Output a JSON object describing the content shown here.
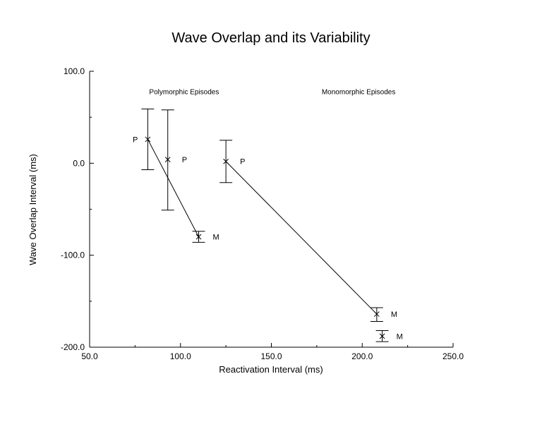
{
  "chart_data": {
    "type": "scatter",
    "title": "Wave Overlap and its Variability",
    "xlabel": "Reactivation Interval (ms)",
    "ylabel": "Wave Overlap Interval (ms)",
    "xlim": [
      50,
      250
    ],
    "ylim": [
      -200,
      100
    ],
    "x_ticks": [
      "50.0",
      "100.0",
      "150.0",
      "200.0",
      "250.0"
    ],
    "y_ticks": [
      "100.0",
      "0.0",
      "-100.0",
      "-200.0"
    ],
    "grid": false,
    "annotations": [
      {
        "text": "Polymorphic Episodes",
        "x": 102,
        "y": 78
      },
      {
        "text": "Monomorphic Episodes",
        "x": 198,
        "y": 78
      }
    ],
    "points": [
      {
        "label": "P",
        "x": 82,
        "y": 26,
        "err_low": -7,
        "err_high": 59
      },
      {
        "label": "P",
        "x": 93,
        "y": 4,
        "err_low": -51,
        "err_high": 58
      },
      {
        "label": "M",
        "x": 110,
        "y": -80,
        "err_low": -86,
        "err_high": -74
      },
      {
        "label": "P",
        "x": 125,
        "y": 2,
        "err_low": -21,
        "err_high": 25
      },
      {
        "label": "M",
        "x": 208,
        "y": -164,
        "err_low": -172,
        "err_high": -157
      },
      {
        "label": "M",
        "x": 211,
        "y": -188,
        "err_low": -194,
        "err_high": -182
      }
    ],
    "lines": [
      {
        "from": 0,
        "to": 2
      },
      {
        "from": 3,
        "to": 4
      }
    ]
  }
}
